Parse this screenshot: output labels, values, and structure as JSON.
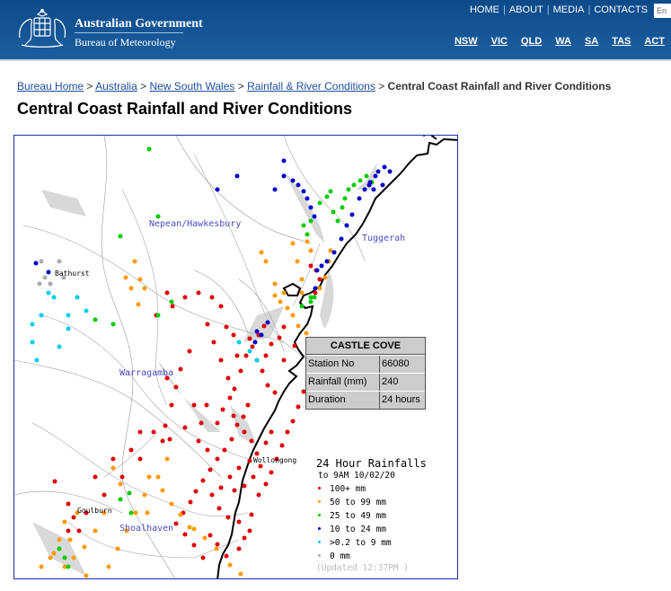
{
  "header": {
    "brand_line1": "Australian Government",
    "brand_line2": "Bureau of Meteorology",
    "top_nav": [
      "HOME",
      "ABOUT",
      "MEDIA",
      "CONTACTS"
    ],
    "search_placeholder": "En",
    "state_nav": [
      "NSW",
      "VIC",
      "QLD",
      "WA",
      "SA",
      "TAS",
      "ACT"
    ]
  },
  "breadcrumb": {
    "links": [
      "Bureau Home",
      "Australia",
      "New South Wales",
      "Rainfall & River Conditions"
    ],
    "current": "Central Coast Rainfall and River Conditions",
    "separator": ">"
  },
  "page_title": "Central Coast Rainfall and River Conditions",
  "map": {
    "regions": [
      "Nepean/Hawkesbury",
      "Tuggerah",
      "Warragamba",
      "Shoalhaven"
    ],
    "towns": [
      "Bathurst",
      "Wollongong",
      "Goulburn"
    ],
    "popup": {
      "title": "CASTLE COVE",
      "rows": [
        {
          "label": "Station No",
          "value": "66080"
        },
        {
          "label": "Rainfall (mm)",
          "value": "240"
        },
        {
          "label": "Duration",
          "value": "24 hours"
        }
      ]
    },
    "legend": {
      "title": "24 Hour Rainfalls",
      "subtitle": "to 9AM 10/02/20",
      "items": [
        {
          "label": "100+ mm",
          "color": "#e00000"
        },
        {
          "label": "50  to 99 mm",
          "color": "#ff9900"
        },
        {
          "label": "25  to 49 mm",
          "color": "#00cc00"
        },
        {
          "label": "10  to 24 mm",
          "color": "#0000cc"
        },
        {
          "label": ">0.2 to 9 mm",
          "color": "#00ccee"
        },
        {
          "label": "0 mm",
          "color": "#aaaaaa"
        }
      ],
      "updated": "(Updated 12:37PM  )"
    }
  },
  "colors": {
    "header_bg": "#1b5f9f",
    "link": "#1b4d9e",
    "map_border": "#1a2ca8",
    "land_label": "#4a4ac0"
  }
}
